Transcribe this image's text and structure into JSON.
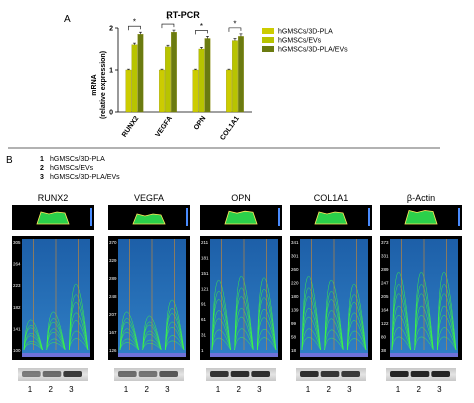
{
  "panel_a": {
    "letter": "A",
    "title": "RT-PCR",
    "ylabel_line1": "mRNA",
    "ylabel_line2": "(relative expression)",
    "significance": "*"
  },
  "panel_b": {
    "letter": "B",
    "key": [
      {
        "num": "1",
        "label": "hGMSCs/3D-PLA"
      },
      {
        "num": "2",
        "label": "hGMSCs/EVs"
      },
      {
        "num": "3",
        "label": "hGMSCs/3D-PLA/EVs"
      }
    ],
    "lane_labels": [
      "1",
      "2",
      "3"
    ],
    "blots": [
      {
        "name": "RUNX2",
        "ticks": [
          "305",
          "264",
          "223",
          "182",
          "141",
          "100"
        ]
      },
      {
        "name": "VEGFA",
        "ticks": [
          "370",
          "329",
          "289",
          "248",
          "207",
          "167",
          "126"
        ]
      },
      {
        "name": "OPN",
        "ticks": [
          "211",
          "181",
          "151",
          "121",
          "91",
          "61",
          "31",
          "1"
        ]
      },
      {
        "name": "COL1A1",
        "ticks": [
          "341",
          "301",
          "260",
          "220",
          "180",
          "139",
          "99",
          "58",
          "18"
        ]
      },
      {
        "name": "β-Actin",
        "ticks": [
          "373",
          "331",
          "289",
          "247",
          "205",
          "164",
          "122",
          "80",
          "38"
        ]
      }
    ]
  },
  "colors": {
    "pla": "#cccc00",
    "evs": "#b8c400",
    "pla_evs": "#6b7b10",
    "heatmap_bg": "#2a6fb4",
    "contour": "#3cff3c",
    "lane_line": "#d08a30"
  },
  "chart_data": {
    "type": "bar",
    "title": "RT-PCR",
    "ylabel": "mRNA (relative expression)",
    "categories": [
      "RUNX2",
      "VEGFA",
      "OPN",
      "COL1A1"
    ],
    "ylim": [
      0,
      2
    ],
    "yticks": [
      0,
      1,
      2
    ],
    "legend_position": "top-right",
    "series": [
      {
        "name": "hGMSCs/3D-PLA",
        "values": [
          1.0,
          1.0,
          1.0,
          1.0
        ],
        "errors": [
          0.02,
          0.02,
          0.02,
          0.02
        ]
      },
      {
        "name": "hGMSCs/EVs",
        "values": [
          1.6,
          1.55,
          1.5,
          1.7
        ],
        "errors": [
          0.04,
          0.04,
          0.04,
          0.05
        ]
      },
      {
        "name": "hGMSCs/3D-PLA/EVs",
        "values": [
          1.85,
          1.9,
          1.75,
          1.8
        ],
        "errors": [
          0.05,
          0.05,
          0.05,
          0.06
        ]
      }
    ],
    "significance_brackets": [
      {
        "category": "RUNX2",
        "label": "*"
      },
      {
        "category": "VEGFA",
        "label": "*"
      },
      {
        "category": "OPN",
        "label": "*"
      },
      {
        "category": "COL1A1",
        "label": "*"
      }
    ]
  }
}
